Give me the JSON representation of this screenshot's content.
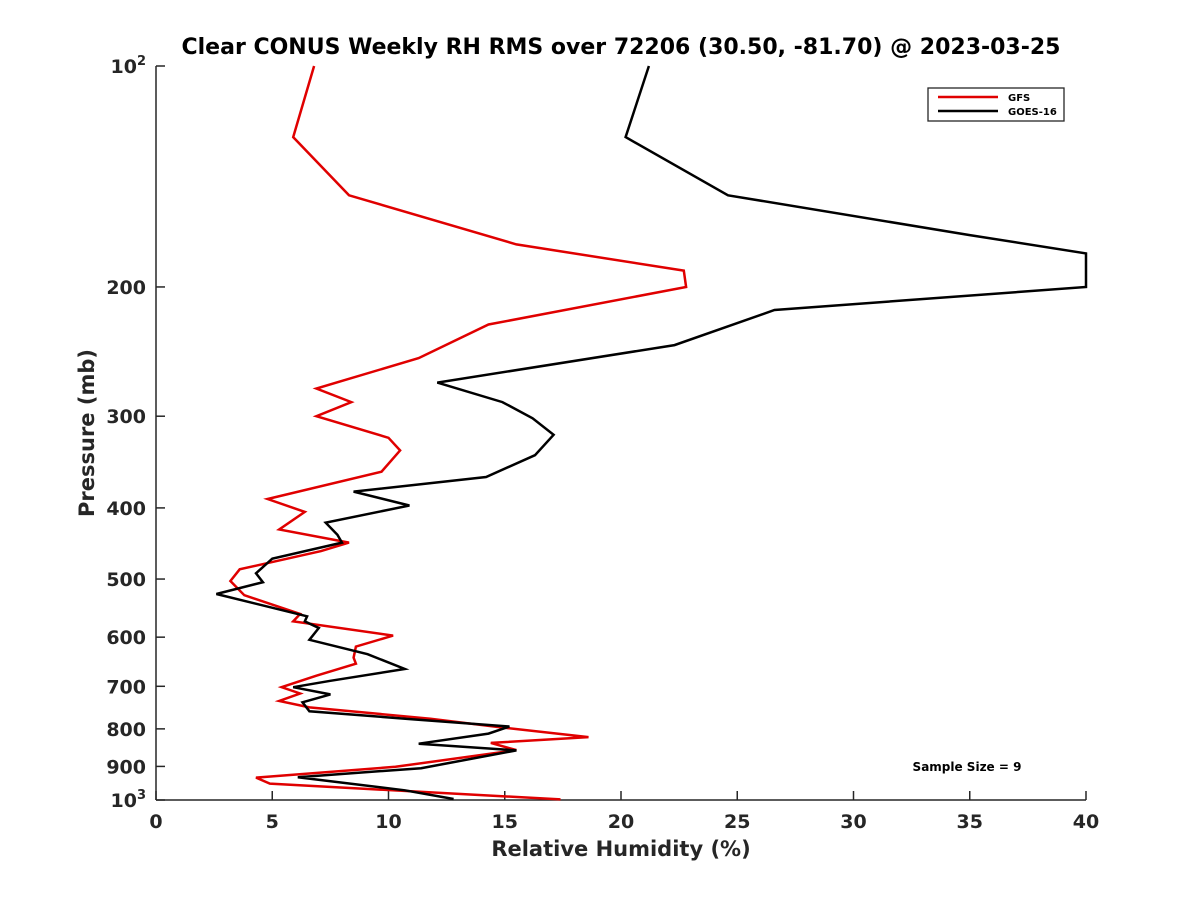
{
  "chart_data": {
    "type": "line",
    "title": "Clear CONUS Weekly RH RMS over 72206 (30.50, -81.70) @ 2023-03-25",
    "xlabel": "Relative Humidity (%)",
    "ylabel": "Pressure (mb)",
    "xlim": [
      0,
      40
    ],
    "ylim": [
      100,
      1000
    ],
    "y_scale": "log",
    "y_reversed": true,
    "grid": false,
    "legend_position": "top-right",
    "x_ticks": [
      0,
      5,
      10,
      15,
      20,
      25,
      30,
      35,
      40
    ],
    "y_ticks": [
      {
        "value": 100,
        "base": "10",
        "exp": "2"
      },
      {
        "value": 200,
        "label": "200"
      },
      {
        "value": 300,
        "label": "300"
      },
      {
        "value": 400,
        "label": "400"
      },
      {
        "value": 500,
        "label": "500"
      },
      {
        "value": 600,
        "label": "600"
      },
      {
        "value": 700,
        "label": "700"
      },
      {
        "value": 800,
        "label": "800"
      },
      {
        "value": 900,
        "label": "900"
      },
      {
        "value": 1000,
        "base": "10",
        "exp": "3"
      }
    ],
    "annotation": "Sample Size = 9",
    "series": [
      {
        "name": "GFS",
        "color": "#e00000",
        "points": [
          [
            6.8,
            100
          ],
          [
            5.9,
            125
          ],
          [
            8.3,
            150
          ],
          [
            15.5,
            175
          ],
          [
            22.7,
            190
          ],
          [
            22.8,
            200
          ],
          [
            14.3,
            225
          ],
          [
            11.3,
            250
          ],
          [
            6.9,
            275
          ],
          [
            8.4,
            287
          ],
          [
            6.9,
            300
          ],
          [
            10.0,
            321
          ],
          [
            10.5,
            334
          ],
          [
            9.7,
            357
          ],
          [
            4.8,
            389
          ],
          [
            6.4,
            405
          ],
          [
            5.3,
            428
          ],
          [
            8.3,
            446
          ],
          [
            7.1,
            458
          ],
          [
            3.6,
            485
          ],
          [
            3.2,
            503
          ],
          [
            3.8,
            526
          ],
          [
            6.2,
            558
          ],
          [
            5.9,
            571
          ],
          [
            10.2,
            597
          ],
          [
            8.6,
            618
          ],
          [
            8.5,
            640
          ],
          [
            8.6,
            652
          ],
          [
            6.9,
            677
          ],
          [
            5.4,
            702
          ],
          [
            6.2,
            716
          ],
          [
            5.3,
            733
          ],
          [
            6.6,
            748
          ],
          [
            11.8,
            775
          ],
          [
            14.8,
            796
          ],
          [
            18.6,
            821
          ],
          [
            14.4,
            836
          ],
          [
            15.5,
            855
          ],
          [
            10.3,
            901
          ],
          [
            4.3,
            932
          ],
          [
            4.9,
            950
          ],
          [
            17.4,
            998
          ]
        ]
      },
      {
        "name": "GOES-16",
        "color": "#000000",
        "points": [
          [
            21.2,
            100
          ],
          [
            20.2,
            125
          ],
          [
            24.6,
            150
          ],
          [
            35.0,
            170
          ],
          [
            40.0,
            180
          ],
          [
            40.0,
            200
          ],
          [
            26.6,
            215
          ],
          [
            22.3,
            240
          ],
          [
            12.1,
            270
          ],
          [
            14.9,
            287
          ],
          [
            16.2,
            302
          ],
          [
            17.1,
            318
          ],
          [
            16.3,
            339
          ],
          [
            14.2,
            363
          ],
          [
            8.5,
            380
          ],
          [
            10.9,
            397
          ],
          [
            7.3,
            419
          ],
          [
            7.8,
            435
          ],
          [
            8.0,
            446
          ],
          [
            5.0,
            469
          ],
          [
            4.3,
            491
          ],
          [
            4.6,
            505
          ],
          [
            2.6,
            524
          ],
          [
            6.5,
            562
          ],
          [
            6.4,
            571
          ],
          [
            7.0,
            583
          ],
          [
            6.6,
            605
          ],
          [
            9.1,
            633
          ],
          [
            10.7,
            663
          ],
          [
            7.5,
            688
          ],
          [
            5.9,
            702
          ],
          [
            7.5,
            718
          ],
          [
            6.3,
            736
          ],
          [
            6.6,
            757
          ],
          [
            11.0,
            776
          ],
          [
            15.2,
            794
          ],
          [
            14.3,
            812
          ],
          [
            11.3,
            838
          ],
          [
            15.5,
            856
          ],
          [
            11.4,
            905
          ],
          [
            6.1,
            931
          ],
          [
            10.7,
            970
          ],
          [
            12.8,
            997
          ]
        ]
      }
    ]
  }
}
